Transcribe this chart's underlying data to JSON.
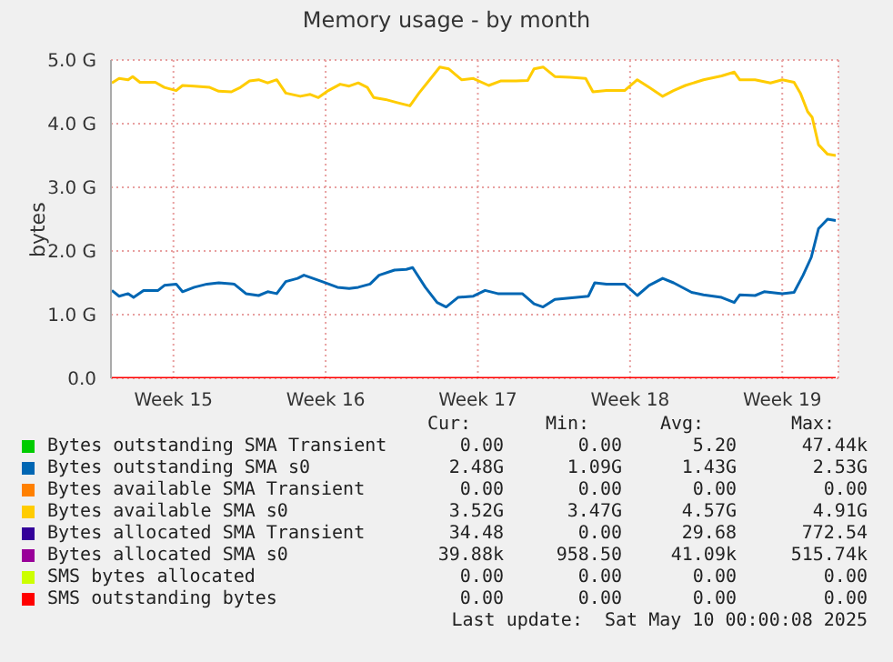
{
  "chart_data": {
    "type": "line",
    "title": "Memory usage - by month",
    "ylabel": "bytes",
    "xlim": [
      "2025-04-06T15:00",
      "2025-05-10T02:00"
    ],
    "xticks": [
      {
        "value": "2025-04-09T12:00",
        "label": "Week 15"
      },
      {
        "value": "2025-04-16T12:00",
        "label": "Week 16"
      },
      {
        "value": "2025-04-23T12:00",
        "label": "Week 17"
      },
      {
        "value": "2025-04-30T12:00",
        "label": "Week 18"
      },
      {
        "value": "2025-05-07T12:00",
        "label": "Week 19"
      }
    ],
    "ylim": [
      0,
      5
    ],
    "yticks": [
      {
        "value": 0,
        "label": "0.0"
      },
      {
        "value": 1,
        "label": "1.0 G"
      },
      {
        "value": 2,
        "label": "2.0 G"
      },
      {
        "value": 3,
        "label": "3.0 G"
      },
      {
        "value": 4,
        "label": "4.0 G"
      },
      {
        "value": 5,
        "label": "5.0 G"
      }
    ],
    "grid": true,
    "legend": "bottom",
    "marker": "none",
    "line_style": "solid",
    "series": [
      {
        "name": "Bytes outstanding SMA Transient",
        "color": "#00cc00"
      },
      {
        "name": "Bytes outstanding SMA s0",
        "color": "#0066b3",
        "x": [
          "2025-04-06T16:00",
          "2025-04-07T00:00",
          "2025-04-07T10:00",
          "2025-04-07T16:00",
          "2025-04-08T03:00",
          "2025-04-08T19:00",
          "2025-04-09T02:00",
          "2025-04-09T15:00",
          "2025-04-09T22:00",
          "2025-04-10T11:00",
          "2025-04-11T01:00",
          "2025-04-11T14:00",
          "2025-04-12T07:00",
          "2025-04-12T20:00",
          "2025-04-13T10:00",
          "2025-04-13T20:00",
          "2025-04-14T06:00",
          "2025-04-14T16:00",
          "2025-04-15T05:00",
          "2025-04-15T12:00",
          "2025-04-15T22:00",
          "2025-04-16T08:00",
          "2025-04-17T01:00",
          "2025-04-17T14:00",
          "2025-04-18T00:00",
          "2025-04-18T13:00",
          "2025-04-18T23:00",
          "2025-04-19T16:00",
          "2025-04-20T05:00",
          "2025-04-20T12:00",
          "2025-04-21T02:00",
          "2025-04-21T15:00",
          "2025-04-22T01:00",
          "2025-04-22T14:00",
          "2025-04-23T07:00",
          "2025-04-23T20:00",
          "2025-04-24T10:00",
          "2025-04-25T13:00",
          "2025-04-26T02:00",
          "2025-04-26T12:00",
          "2025-04-27T01:00",
          "2025-04-28T01:00",
          "2025-04-28T14:00",
          "2025-04-28T21:00",
          "2025-04-29T10:00",
          "2025-04-30T06:00",
          "2025-04-30T20:00",
          "2025-05-01T09:00",
          "2025-05-02T00:00",
          "2025-05-02T12:00",
          "2025-05-03T08:00",
          "2025-05-03T21:00",
          "2025-05-04T17:00",
          "2025-05-05T07:00",
          "2025-05-05T13:00",
          "2025-05-06T06:00",
          "2025-05-06T16:00",
          "2025-05-07T12:00",
          "2025-05-08T01:00",
          "2025-05-08T11:00",
          "2025-05-08T20:00",
          "2025-05-09T04:00",
          "2025-05-09T14:00",
          "2025-05-09T23:00"
        ],
        "values": [
          1.38,
          1.29,
          1.33,
          1.27,
          1.38,
          1.38,
          1.46,
          1.48,
          1.36,
          1.43,
          1.48,
          1.5,
          1.48,
          1.33,
          1.3,
          1.36,
          1.33,
          1.52,
          1.57,
          1.62,
          1.57,
          1.52,
          1.43,
          1.41,
          1.43,
          1.48,
          1.62,
          1.7,
          1.71,
          1.74,
          1.43,
          1.19,
          1.12,
          1.27,
          1.29,
          1.38,
          1.33,
          1.33,
          1.17,
          1.12,
          1.24,
          1.27,
          1.29,
          1.5,
          1.48,
          1.48,
          1.3,
          1.46,
          1.57,
          1.5,
          1.35,
          1.31,
          1.27,
          1.19,
          1.31,
          1.3,
          1.36,
          1.33,
          1.35,
          1.62,
          1.9,
          2.35,
          2.5,
          2.48
        ]
      },
      {
        "name": "Bytes available SMA Transient",
        "color": "#ff8000"
      },
      {
        "name": "Bytes available SMA s0",
        "color": "#ffcc00",
        "x": [
          "2025-04-06T16:00",
          "2025-04-07T00:00",
          "2025-04-07T10:00",
          "2025-04-07T15:00",
          "2025-04-07T23:00",
          "2025-04-08T16:00",
          "2025-04-09T02:00",
          "2025-04-09T15:00",
          "2025-04-09T22:00",
          "2025-04-10T11:00",
          "2025-04-11T04:00",
          "2025-04-11T14:00",
          "2025-04-12T04:00",
          "2025-04-12T14:00",
          "2025-04-13T00:00",
          "2025-04-13T10:00",
          "2025-04-13T20:00",
          "2025-04-14T06:00",
          "2025-04-14T16:00",
          "2025-04-15T08:00",
          "2025-04-15T19:00",
          "2025-04-16T04:00",
          "2025-04-16T15:00",
          "2025-04-17T04:00",
          "2025-04-17T14:00",
          "2025-04-18T00:00",
          "2025-04-18T10:00",
          "2025-04-18T17:00",
          "2025-04-19T06:00",
          "2025-04-19T19:00",
          "2025-04-20T09:00",
          "2025-04-20T19:00",
          "2025-04-21T08:00",
          "2025-04-21T18:00",
          "2025-04-22T04:00",
          "2025-04-22T18:00",
          "2025-04-23T07:00",
          "2025-04-24T00:00",
          "2025-04-24T13:00",
          "2025-04-25T06:00",
          "2025-04-25T19:00",
          "2025-04-26T02:00",
          "2025-04-26T12:00",
          "2025-04-27T01:00",
          "2025-04-27T18:00",
          "2025-04-28T11:00",
          "2025-04-28T19:00",
          "2025-04-29T10:00",
          "2025-04-30T06:00",
          "2025-04-30T20:00",
          "2025-05-01T09:00",
          "2025-05-02T00:00",
          "2025-05-02T12:00",
          "2025-05-03T01:00",
          "2025-05-03T21:00",
          "2025-05-04T17:00",
          "2025-05-05T07:00",
          "2025-05-05T13:00",
          "2025-05-06T06:00",
          "2025-05-06T23:00",
          "2025-05-07T12:00",
          "2025-05-08T01:00",
          "2025-05-08T08:00",
          "2025-05-08T16:00",
          "2025-05-08T21:00",
          "2025-05-09T04:00",
          "2025-05-09T14:00",
          "2025-05-09T23:00"
        ],
        "values": [
          4.64,
          4.71,
          4.69,
          4.74,
          4.65,
          4.65,
          4.57,
          4.52,
          4.6,
          4.59,
          4.57,
          4.51,
          4.5,
          4.57,
          4.67,
          4.69,
          4.64,
          4.69,
          4.48,
          4.43,
          4.46,
          4.41,
          4.52,
          4.62,
          4.59,
          4.64,
          4.57,
          4.41,
          4.38,
          4.33,
          4.28,
          4.48,
          4.71,
          4.89,
          4.86,
          4.69,
          4.71,
          4.6,
          4.67,
          4.67,
          4.68,
          4.86,
          4.89,
          4.74,
          4.73,
          4.71,
          4.5,
          4.52,
          4.52,
          4.69,
          4.57,
          4.43,
          4.52,
          4.6,
          4.69,
          4.75,
          4.81,
          4.69,
          4.69,
          4.64,
          4.69,
          4.65,
          4.48,
          4.19,
          4.1,
          3.67,
          3.52,
          3.5
        ]
      },
      {
        "name": "Bytes allocated SMA Transient",
        "color": "#330099"
      },
      {
        "name": "Bytes allocated SMA s0",
        "color": "#990099"
      },
      {
        "name": "SMS bytes allocated",
        "color": "#ccff00"
      },
      {
        "name": "SMS outstanding bytes",
        "color": "#ff0000",
        "x": [
          "2025-04-06T16:00",
          "2025-05-09T23:00"
        ],
        "values": [
          0,
          0
        ]
      }
    ],
    "annotations": [
      "Cur:",
      "Min:",
      "Avg:",
      "Max:",
      "0.00",
      "0.00",
      "5.20",
      "47.44k",
      "2.48G",
      "1.09G",
      "1.43G",
      "2.53G",
      "0.00",
      "0.00",
      "0.00",
      "0.00",
      "3.52G",
      "3.47G",
      "4.57G",
      "4.91G",
      "34.48",
      "0.00",
      "29.68",
      "772.54",
      "39.88k",
      "958.50",
      "41.09k",
      "515.74k",
      "0.00",
      "0.00",
      "0.00",
      "0.00",
      "0.00",
      "0.00",
      "0.00",
      "0.00",
      "Last update:  Sat May 10 00:00:08 2025"
    ]
  }
}
